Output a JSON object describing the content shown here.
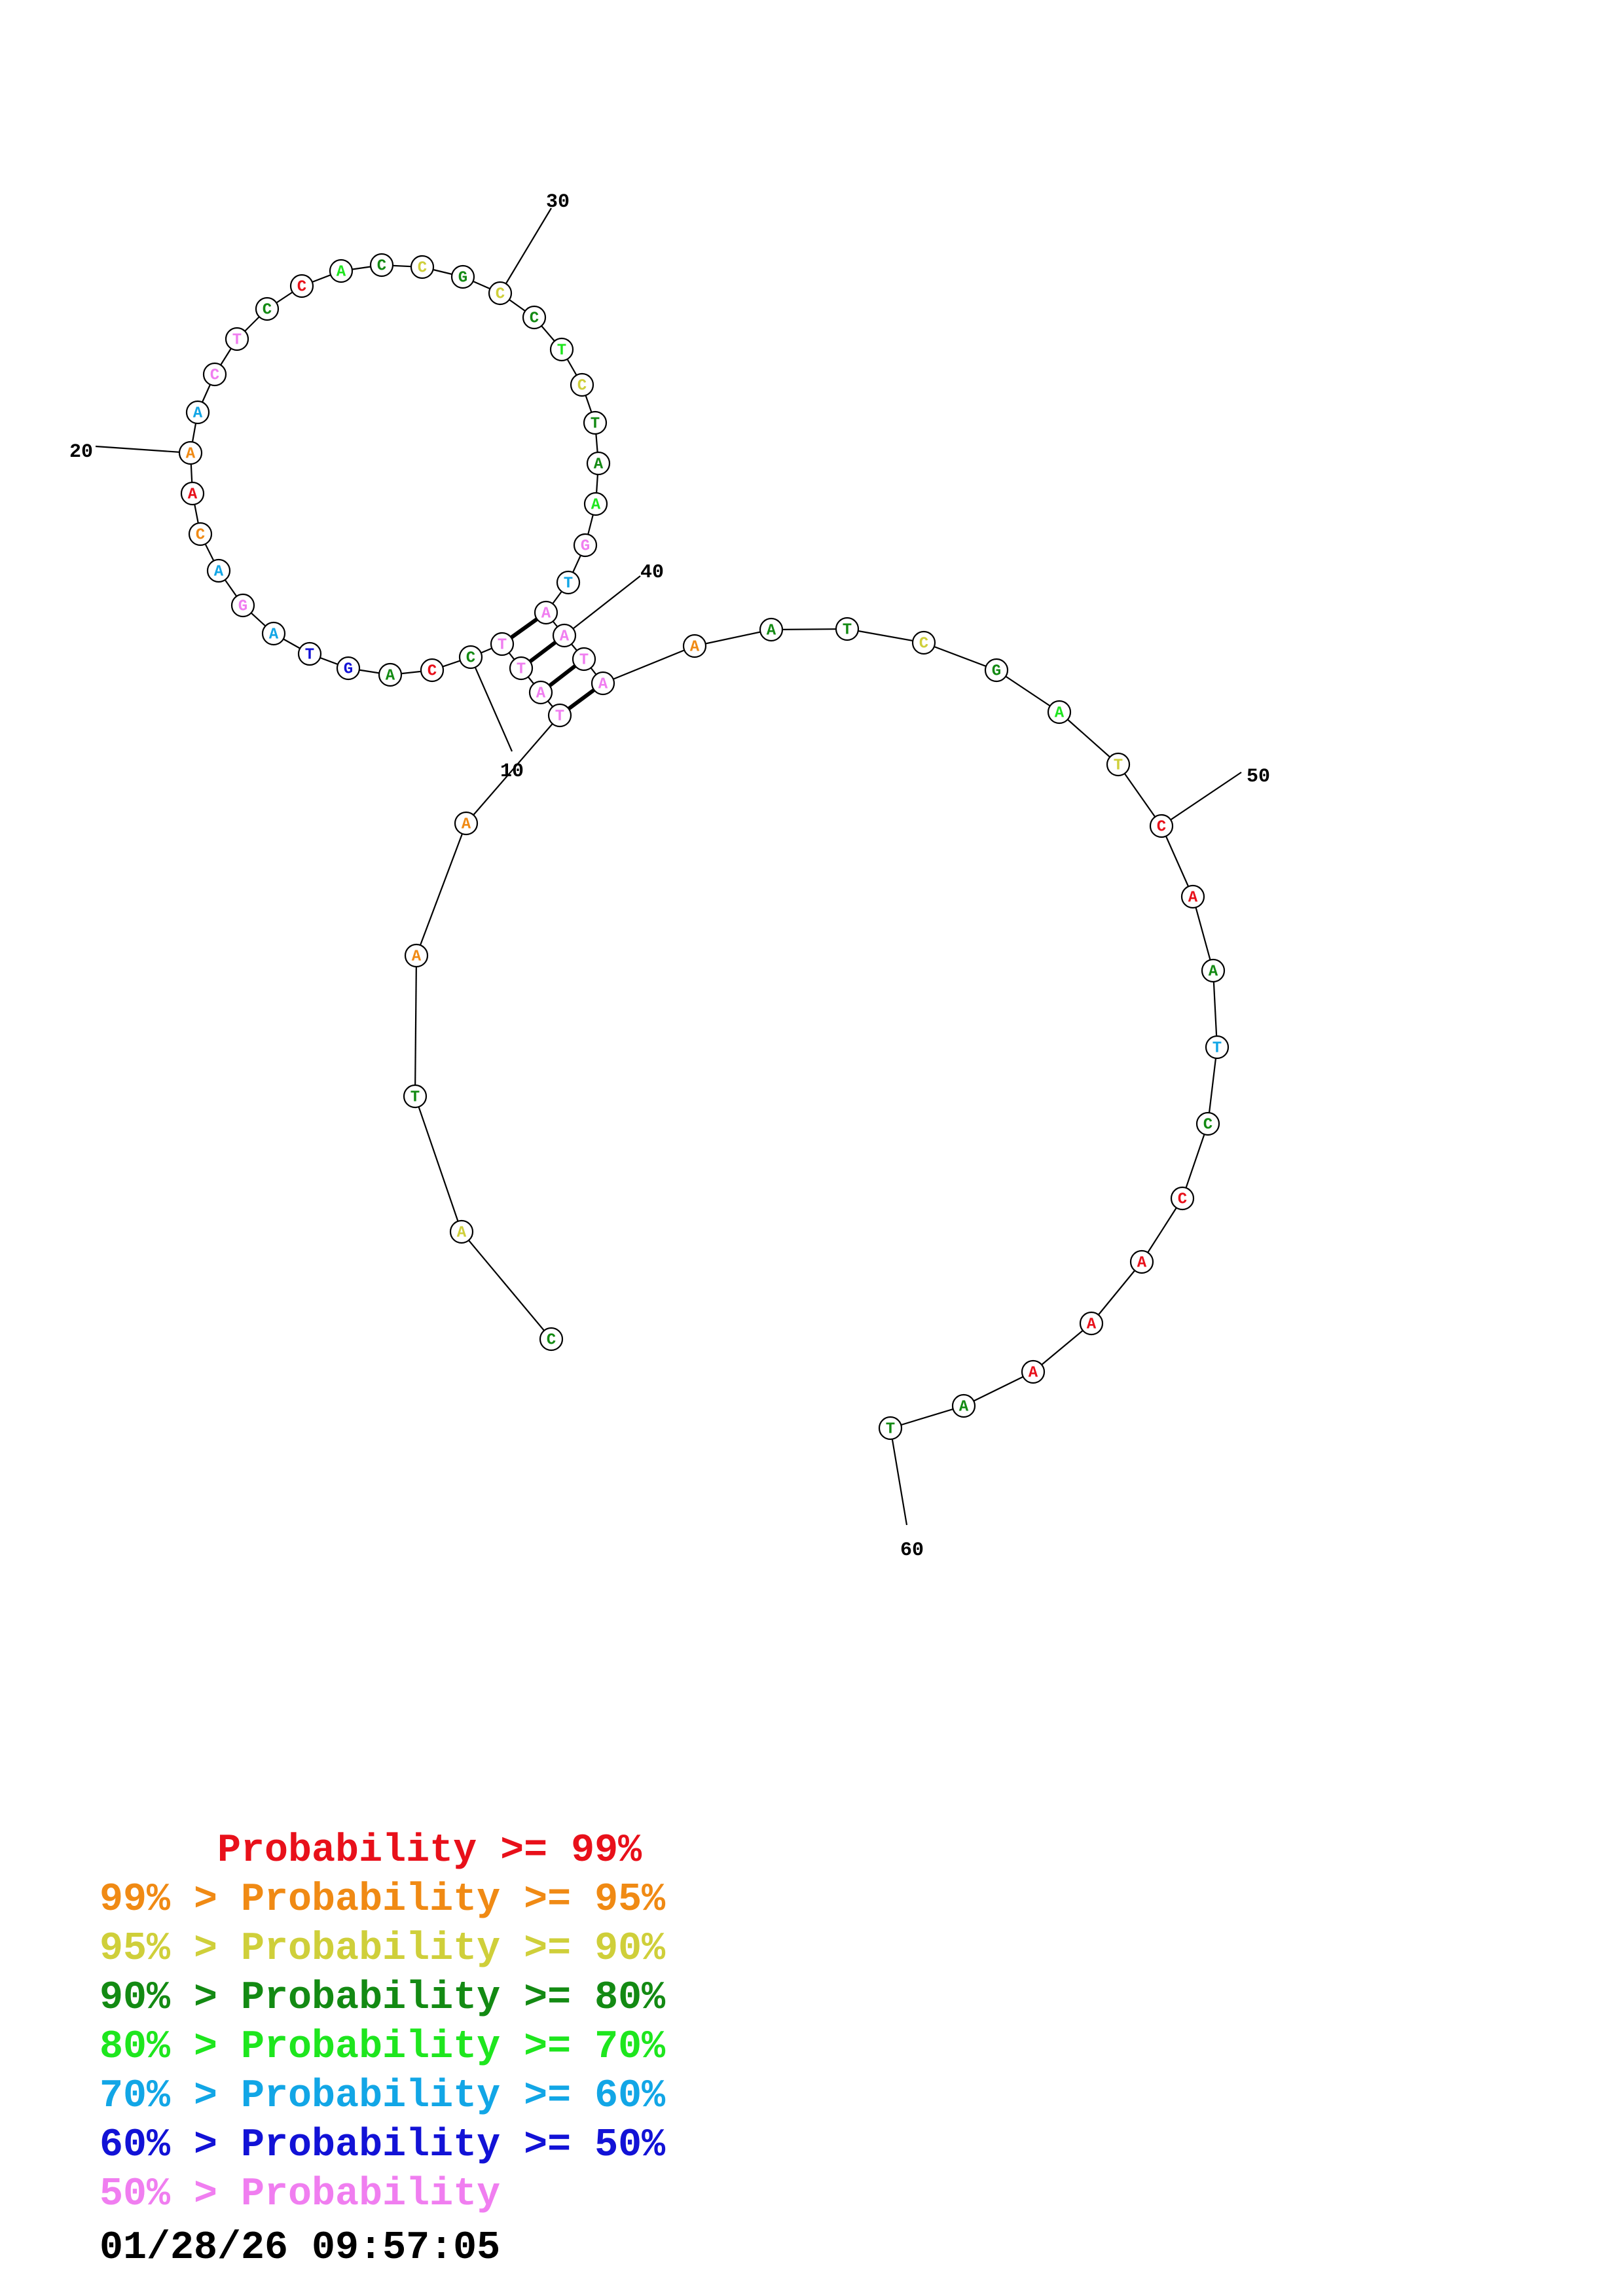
{
  "structure": {
    "nucleotides": [
      {
        "n": 1,
        "base": "C",
        "prob": "p90"
      },
      {
        "n": 2,
        "base": "A",
        "prob": "p95"
      },
      {
        "n": 3,
        "base": "T",
        "prob": "p90"
      },
      {
        "n": 4,
        "base": "A",
        "prob": "p99"
      },
      {
        "n": 5,
        "base": "A",
        "prob": "p99"
      },
      {
        "n": 6,
        "base": "T",
        "prob": "p50"
      },
      {
        "n": 7,
        "base": "A",
        "prob": "p50"
      },
      {
        "n": 8,
        "base": "T",
        "prob": "p50"
      },
      {
        "n": 9,
        "base": "T",
        "prob": "p50"
      },
      {
        "n": 10,
        "base": "C",
        "prob": "p90"
      },
      {
        "n": 11,
        "base": "C",
        "prob": "p100"
      },
      {
        "n": 12,
        "base": "A",
        "prob": "p90"
      },
      {
        "n": 13,
        "base": "G",
        "prob": "p60"
      },
      {
        "n": 14,
        "base": "T",
        "prob": "p60"
      },
      {
        "n": 15,
        "base": "A",
        "prob": "p70"
      },
      {
        "n": 16,
        "base": "G",
        "prob": "p50"
      },
      {
        "n": 17,
        "base": "A",
        "prob": "p70"
      },
      {
        "n": 18,
        "base": "C",
        "prob": "p99"
      },
      {
        "n": 19,
        "base": "A",
        "prob": "p100"
      },
      {
        "n": 20,
        "base": "A",
        "prob": "p99"
      },
      {
        "n": 21,
        "base": "A",
        "prob": "p70"
      },
      {
        "n": 22,
        "base": "C",
        "prob": "p50"
      },
      {
        "n": 23,
        "base": "T",
        "prob": "p50"
      },
      {
        "n": 24,
        "base": "C",
        "prob": "p90"
      },
      {
        "n": 25,
        "base": "C",
        "prob": "p100"
      },
      {
        "n": 26,
        "base": "A",
        "prob": "p80"
      },
      {
        "n": 27,
        "base": "C",
        "prob": "p90"
      },
      {
        "n": 28,
        "base": "C",
        "prob": "p95"
      },
      {
        "n": 29,
        "base": "G",
        "prob": "p90"
      },
      {
        "n": 30,
        "base": "C",
        "prob": "p95"
      },
      {
        "n": 31,
        "base": "C",
        "prob": "p90"
      },
      {
        "n": 32,
        "base": "T",
        "prob": "p80"
      },
      {
        "n": 33,
        "base": "C",
        "prob": "p95"
      },
      {
        "n": 34,
        "base": "T",
        "prob": "p90"
      },
      {
        "n": 35,
        "base": "A",
        "prob": "p90"
      },
      {
        "n": 36,
        "base": "A",
        "prob": "p80"
      },
      {
        "n": 37,
        "base": "G",
        "prob": "p50"
      },
      {
        "n": 38,
        "base": "T",
        "prob": "p70"
      },
      {
        "n": 39,
        "base": "A",
        "prob": "p50"
      },
      {
        "n": 40,
        "base": "A",
        "prob": "p50"
      },
      {
        "n": 41,
        "base": "T",
        "prob": "p50"
      },
      {
        "n": 42,
        "base": "A",
        "prob": "p50"
      },
      {
        "n": 43,
        "base": "A",
        "prob": "p99"
      },
      {
        "n": 44,
        "base": "A",
        "prob": "p90"
      },
      {
        "n": 45,
        "base": "T",
        "prob": "p90"
      },
      {
        "n": 46,
        "base": "C",
        "prob": "p95"
      },
      {
        "n": 47,
        "base": "G",
        "prob": "p90"
      },
      {
        "n": 48,
        "base": "A",
        "prob": "p80"
      },
      {
        "n": 49,
        "base": "T",
        "prob": "p95"
      },
      {
        "n": 50,
        "base": "C",
        "prob": "p100"
      },
      {
        "n": 51,
        "base": "A",
        "prob": "p100"
      },
      {
        "n": 52,
        "base": "A",
        "prob": "p90"
      },
      {
        "n": 53,
        "base": "T",
        "prob": "p70"
      },
      {
        "n": 54,
        "base": "C",
        "prob": "p90"
      },
      {
        "n": 55,
        "base": "C",
        "prob": "p100"
      },
      {
        "n": 56,
        "base": "A",
        "prob": "p100"
      },
      {
        "n": 57,
        "base": "A",
        "prob": "p100"
      },
      {
        "n": 58,
        "base": "A",
        "prob": "p100"
      },
      {
        "n": 59,
        "base": "A",
        "prob": "p90"
      },
      {
        "n": 60,
        "base": "T",
        "prob": "p90"
      }
    ],
    "pairs": [
      [
        6,
        42
      ],
      [
        7,
        41
      ],
      [
        8,
        40
      ],
      [
        9,
        39
      ]
    ],
    "labels": [
      "10",
      "20",
      "30",
      "40",
      "50",
      "60"
    ]
  },
  "colors": {
    "p100": "#e8101a",
    "p99": "#f08a14",
    "p95": "#cfcf3a",
    "p90": "#138a13",
    "p80": "#1ee61e",
    "p70": "#12a6e6",
    "p60": "#1212d6",
    "p50": "#f07ef0"
  },
  "legend": [
    {
      "text": "     Probability >= 99%",
      "prob": "p100"
    },
    {
      "text": "99% > Probability >= 95%",
      "prob": "p99"
    },
    {
      "text": "95% > Probability >= 90%",
      "prob": "p95"
    },
    {
      "text": "90% > Probability >= 80%",
      "prob": "p90"
    },
    {
      "text": "80% > Probability >= 70%",
      "prob": "p80"
    },
    {
      "text": "70% > Probability >= 60%",
      "prob": "p70"
    },
    {
      "text": "60% > Probability >= 50%",
      "prob": "p60"
    },
    {
      "text": "50% > Probability",
      "prob": "p50"
    }
  ],
  "timestamp": "01/28/26 09:57:05"
}
